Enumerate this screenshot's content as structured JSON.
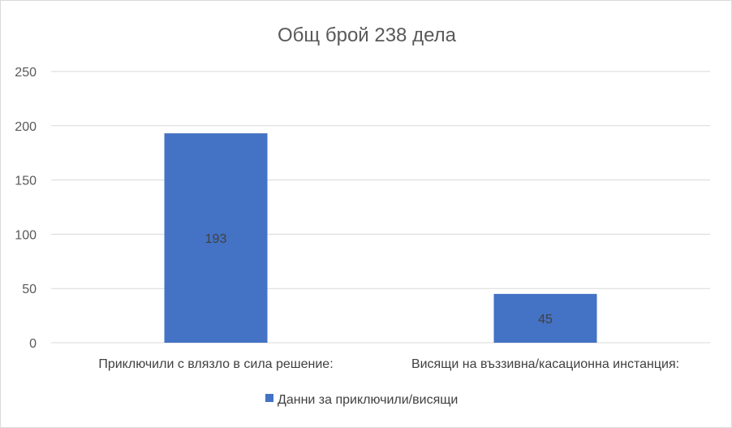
{
  "chart_data": {
    "type": "bar",
    "title": "Общ брой 238 дела",
    "categories": [
      "Приключили с влязло в сила решение:",
      "Висящи на въззивна/касационна инстанция:"
    ],
    "series": [
      {
        "name": "Данни за приключили/висящи",
        "values": [
          193,
          45
        ],
        "color": "#4472C4"
      }
    ],
    "data_labels": [
      "193",
      "45"
    ],
    "ylim": [
      0,
      250
    ],
    "yticks": [
      0,
      50,
      100,
      150,
      200,
      250
    ],
    "xlabel": "",
    "ylabel": "",
    "grid": true,
    "legend": "bottom"
  }
}
